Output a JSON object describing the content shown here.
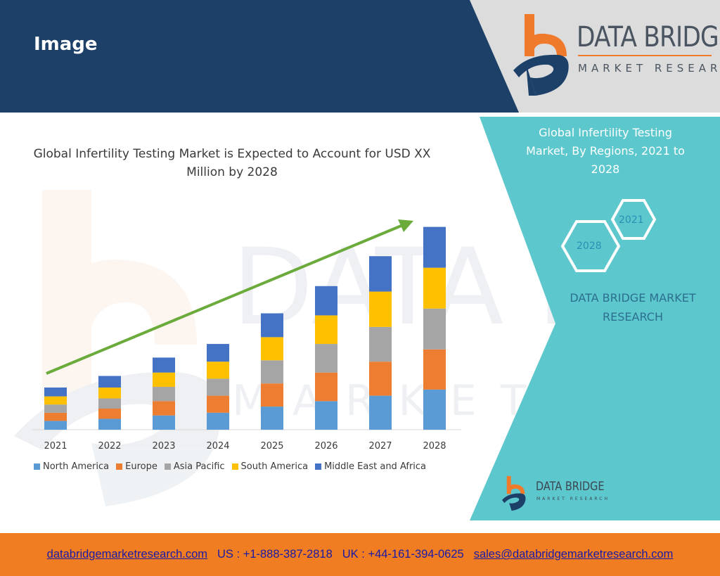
{
  "slide": {
    "title": "Image"
  },
  "brand": {
    "name": "DATA BRIDGE",
    "tagline": "MARKET RESEARCH"
  },
  "colors": {
    "header_navy": "#1c4068",
    "header_gray": "#dcdcdc",
    "teal_panel": "#5cc7cc",
    "footer_orange": "#f07d22",
    "logo_orange": "#f07a2c",
    "logo_navy": "#1c4068",
    "trend_arrow": "#6aab3c"
  },
  "chart_data": {
    "type": "bar",
    "stacked": true,
    "title": "Global Infertility Testing Market is Expected to Account for USD XX Million by 2028",
    "xlabel": "",
    "ylabel": "",
    "categories": [
      "2021",
      "2022",
      "2023",
      "2024",
      "2025",
      "2026",
      "2027",
      "2028"
    ],
    "series": [
      {
        "name": "North America",
        "color": "#5b9bd5",
        "values": [
          13,
          16,
          21,
          25,
          34,
          42,
          50,
          59
        ]
      },
      {
        "name": "Europe",
        "color": "#ed7d31",
        "values": [
          12,
          15,
          21,
          25,
          34,
          42,
          50,
          59
        ]
      },
      {
        "name": "Asia Pacific",
        "color": "#a5a5a5",
        "values": [
          12,
          15,
          21,
          25,
          34,
          42,
          51,
          60
        ]
      },
      {
        "name": "South America",
        "color": "#ffc000",
        "values": [
          12,
          16,
          21,
          25,
          34,
          42,
          52,
          60
        ]
      },
      {
        "name": "Middle East and Africa",
        "color": "#4472c4",
        "values": [
          13,
          17,
          22,
          26,
          35,
          43,
          52,
          60
        ]
      }
    ],
    "ylim": [
      0,
      310
    ],
    "grid": false,
    "legend": "bottom",
    "annotation": "upward trend arrow"
  },
  "side_panel": {
    "title": "Global Infertility Testing Market, By Regions, 2021 to 2028",
    "hex_a": "2021",
    "hex_b": "2028",
    "brand": "DATA BRIDGE MARKET RESEARCH"
  },
  "footer": {
    "website": "databridgemarketresearch.com",
    "us_phone": "US : +1-888-387-2818",
    "uk_phone": "UK : +44-161-394-0625",
    "email": "sales@databridgemarketresearch.com"
  }
}
